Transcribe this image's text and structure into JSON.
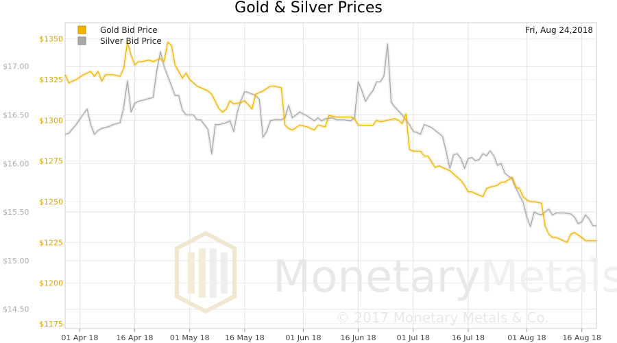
{
  "chart_data": {
    "type": "line",
    "title": "Gold & Silver Prices",
    "date_label": "Fri, Aug 24,2018",
    "legend_position": "top-left",
    "grid": true,
    "x_tick_labels": [
      "01 Apr 18",
      "16 Apr 18",
      "01 May 18",
      "16 May 18",
      "01 Jun 18",
      "16 Jun 18",
      "01 Jul 18",
      "16 Jul 18",
      "01 Aug 18",
      "16 Aug 18"
    ],
    "x_range": [
      -4,
      141
    ],
    "y_left": {
      "tick_labels": [
        "$17.00",
        "$16.50",
        "$16.00",
        "$15.50",
        "$15.00",
        "$14.50"
      ],
      "ticks": [
        17.0,
        16.5,
        16.0,
        15.5,
        15.0,
        14.5
      ],
      "range": [
        14.3,
        17.45
      ]
    },
    "y_right": {
      "tick_labels": [
        "$1350",
        "$1325",
        "$1300",
        "$1275",
        "$1250",
        "$1225",
        "$1200",
        "$1175"
      ],
      "ticks": [
        1350,
        1325,
        1300,
        1275,
        1250,
        1225,
        1200,
        1175
      ],
      "range": [
        1172,
        1360
      ]
    },
    "series": [
      {
        "name": "Gold Bid Price",
        "color": "#f0b400",
        "axis": "right",
        "points": [
          [
            -4,
            1328
          ],
          [
            -3,
            1323
          ],
          [
            -1,
            1325
          ],
          [
            1,
            1328
          ],
          [
            3,
            1330
          ],
          [
            4,
            1327
          ],
          [
            5,
            1330
          ],
          [
            6,
            1324
          ],
          [
            7,
            1328
          ],
          [
            9,
            1328
          ],
          [
            11,
            1327
          ],
          [
            12,
            1332
          ],
          [
            13,
            1348
          ],
          [
            14,
            1340
          ],
          [
            15,
            1334
          ],
          [
            16,
            1336
          ],
          [
            17,
            1336
          ],
          [
            19,
            1337
          ],
          [
            20,
            1336
          ],
          [
            22,
            1338
          ],
          [
            23,
            1336
          ],
          [
            24,
            1348
          ],
          [
            25,
            1346
          ],
          [
            26,
            1334
          ],
          [
            28,
            1326
          ],
          [
            29,
            1329
          ],
          [
            30,
            1325
          ],
          [
            32,
            1321
          ],
          [
            33,
            1320
          ],
          [
            35,
            1318
          ],
          [
            36,
            1316
          ],
          [
            38,
            1307
          ],
          [
            39,
            1305
          ],
          [
            40,
            1307
          ],
          [
            41,
            1312
          ],
          [
            42,
            1310
          ],
          [
            44,
            1311
          ],
          [
            45,
            1312
          ],
          [
            47,
            1307
          ],
          [
            48,
            1316
          ],
          [
            50,
            1318
          ],
          [
            52,
            1321
          ],
          [
            53,
            1321
          ],
          [
            55,
            1320
          ],
          [
            56,
            1297
          ],
          [
            57,
            1295
          ],
          [
            58,
            1294
          ],
          [
            60,
            1297
          ],
          [
            62,
            1296
          ],
          [
            64,
            1294
          ],
          [
            65,
            1297
          ],
          [
            67,
            1296
          ],
          [
            68,
            1303
          ],
          [
            70,
            1302
          ],
          [
            72,
            1302
          ],
          [
            74,
            1302
          ],
          [
            75,
            1301
          ],
          [
            76,
            1297
          ],
          [
            77,
            1297
          ],
          [
            79,
            1297
          ],
          [
            80,
            1297
          ],
          [
            81,
            1300
          ],
          [
            82,
            1299
          ],
          [
            84,
            1300
          ],
          [
            86,
            1301
          ],
          [
            87,
            1300
          ],
          [
            88,
            1298
          ],
          [
            89,
            1304
          ],
          [
            90,
            1282
          ],
          [
            91,
            1281
          ],
          [
            92,
            1281
          ],
          [
            93,
            1281
          ],
          [
            94,
            1278
          ],
          [
            95,
            1278
          ],
          [
            97,
            1271
          ],
          [
            98,
            1272
          ],
          [
            99,
            1271
          ],
          [
            101,
            1269
          ],
          [
            102,
            1267
          ],
          [
            104,
            1263
          ],
          [
            105,
            1260
          ],
          [
            106,
            1256
          ],
          [
            107,
            1256
          ],
          [
            108,
            1255
          ],
          [
            110,
            1253
          ],
          [
            111,
            1258
          ],
          [
            112,
            1259
          ],
          [
            114,
            1260
          ],
          [
            115,
            1262
          ],
          [
            116,
            1262
          ],
          [
            118,
            1265
          ],
          [
            119,
            1259
          ],
          [
            120,
            1258
          ],
          [
            121,
            1253
          ],
          [
            122,
            1251
          ],
          [
            123,
            1250
          ],
          [
            124,
            1250
          ],
          [
            126,
            1249
          ],
          [
            127,
            1235
          ],
          [
            128,
            1230
          ],
          [
            129,
            1228
          ],
          [
            130,
            1228
          ],
          [
            131,
            1227
          ],
          [
            133,
            1225
          ],
          [
            134,
            1230
          ],
          [
            135,
            1231
          ],
          [
            137,
            1228
          ],
          [
            138,
            1226
          ],
          [
            140,
            1226
          ],
          [
            141,
            1226
          ]
        ]
      },
      {
        "name": "Silver Bid Price",
        "color": "#a9a9a9",
        "axis": "left",
        "points": [
          [
            -4,
            16.3
          ],
          [
            -3,
            16.31
          ],
          [
            -1,
            16.4
          ],
          [
            1,
            16.51
          ],
          [
            2,
            16.56
          ],
          [
            3,
            16.4
          ],
          [
            4,
            16.3
          ],
          [
            5,
            16.34
          ],
          [
            6,
            16.36
          ],
          [
            8,
            16.38
          ],
          [
            9,
            16.4
          ],
          [
            11,
            16.42
          ],
          [
            12,
            16.58
          ],
          [
            13,
            16.85
          ],
          [
            14,
            16.53
          ],
          [
            15,
            16.62
          ],
          [
            16,
            16.64
          ],
          [
            18,
            16.66
          ],
          [
            20,
            16.68
          ],
          [
            21,
            16.95
          ],
          [
            22,
            17.15
          ],
          [
            23,
            17.0
          ],
          [
            25,
            16.8
          ],
          [
            26,
            16.7
          ],
          [
            27,
            16.7
          ],
          [
            28,
            16.55
          ],
          [
            29,
            16.5
          ],
          [
            31,
            16.5
          ],
          [
            32,
            16.45
          ],
          [
            33,
            16.45
          ],
          [
            35,
            16.35
          ],
          [
            36,
            16.1
          ],
          [
            37,
            16.4
          ],
          [
            38,
            16.4
          ],
          [
            40,
            16.42
          ],
          [
            41,
            16.44
          ],
          [
            42,
            16.33
          ],
          [
            43,
            16.53
          ],
          [
            44,
            16.65
          ],
          [
            45,
            16.74
          ],
          [
            46,
            16.73
          ],
          [
            48,
            16.7
          ],
          [
            49,
            16.66
          ],
          [
            50,
            16.27
          ],
          [
            51,
            16.33
          ],
          [
            52,
            16.44
          ],
          [
            53,
            16.45
          ],
          [
            55,
            16.45
          ],
          [
            56,
            16.47
          ],
          [
            57,
            16.6
          ],
          [
            58,
            16.47
          ],
          [
            60,
            16.53
          ],
          [
            62,
            16.49
          ],
          [
            64,
            16.44
          ],
          [
            65,
            16.47
          ],
          [
            66,
            16.44
          ],
          [
            67,
            16.46
          ],
          [
            69,
            16.47
          ],
          [
            70,
            16.45
          ],
          [
            72,
            16.45
          ],
          [
            74,
            16.44
          ],
          [
            75,
            16.47
          ],
          [
            76,
            16.84
          ],
          [
            77,
            16.75
          ],
          [
            78,
            16.64
          ],
          [
            79,
            16.7
          ],
          [
            80,
            16.75
          ],
          [
            81,
            16.84
          ],
          [
            82,
            16.84
          ],
          [
            83,
            16.9
          ],
          [
            84,
            17.23
          ],
          [
            85,
            16.63
          ],
          [
            86,
            16.58
          ],
          [
            88,
            16.5
          ],
          [
            89,
            16.45
          ],
          [
            90,
            16.4
          ],
          [
            91,
            16.33
          ],
          [
            92,
            16.32
          ],
          [
            93,
            16.3
          ],
          [
            94,
            16.4
          ],
          [
            96,
            16.37
          ],
          [
            97,
            16.34
          ],
          [
            98,
            16.31
          ],
          [
            99,
            16.28
          ],
          [
            100,
            16.12
          ],
          [
            101,
            15.95
          ],
          [
            102,
            16.09
          ],
          [
            103,
            16.1
          ],
          [
            104,
            16.05
          ],
          [
            105,
            15.95
          ],
          [
            106,
            16.05
          ],
          [
            107,
            16.06
          ],
          [
            108,
            16.03
          ],
          [
            109,
            16.04
          ],
          [
            110,
            16.1
          ],
          [
            111,
            16.08
          ],
          [
            112,
            16.13
          ],
          [
            113,
            16.08
          ],
          [
            114,
            15.98
          ],
          [
            115,
            16.0
          ],
          [
            116,
            15.9
          ],
          [
            117,
            15.87
          ],
          [
            118,
            15.84
          ],
          [
            119,
            15.75
          ],
          [
            120,
            15.67
          ],
          [
            121,
            15.6
          ],
          [
            122,
            15.45
          ],
          [
            123,
            15.35
          ],
          [
            124,
            15.5
          ],
          [
            125,
            15.48
          ],
          [
            126,
            15.47
          ],
          [
            128,
            15.53
          ],
          [
            129,
            15.47
          ],
          [
            130,
            15.49
          ],
          [
            132,
            15.49
          ],
          [
            134,
            15.48
          ],
          [
            135,
            15.45
          ],
          [
            136,
            15.38
          ],
          [
            137,
            15.4
          ],
          [
            138,
            15.47
          ],
          [
            139,
            15.43
          ],
          [
            140,
            15.36
          ],
          [
            141,
            15.36
          ]
        ]
      }
    ]
  },
  "watermark": {
    "brand_a": "Monetary",
    "brand_b": "Metals",
    "registered": "®",
    "copyright": "© 2017 Monetary Metals & Co."
  }
}
